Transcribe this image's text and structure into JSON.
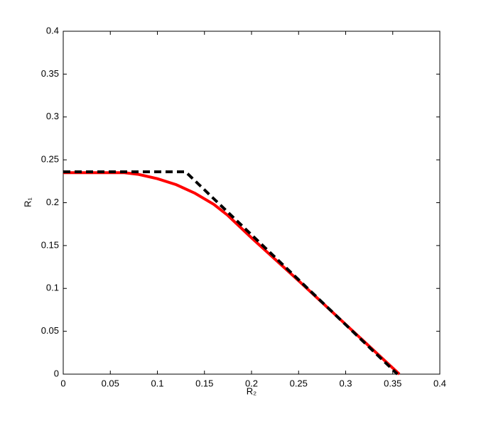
{
  "chart_data": {
    "type": "line",
    "xlabel": "R₂",
    "ylabel": "R₁",
    "xlim": [
      0,
      0.4
    ],
    "ylim": [
      0,
      0.4
    ],
    "xticks": [
      0,
      0.05,
      0.1,
      0.15,
      0.2,
      0.25,
      0.3,
      0.35,
      0.4
    ],
    "yticks": [
      0,
      0.05,
      0.1,
      0.15,
      0.2,
      0.25,
      0.3,
      0.35,
      0.4
    ],
    "grid": false,
    "series": [
      {
        "color": "#ff0000",
        "dash": false,
        "x": [
          0,
          0.03,
          0.065,
          0.08,
          0.1,
          0.12,
          0.14,
          0.16,
          0.175,
          0.2,
          0.25,
          0.3,
          0.357
        ],
        "values": [
          0.235,
          0.235,
          0.235,
          0.233,
          0.228,
          0.221,
          0.211,
          0.198,
          0.185,
          0.159,
          0.109,
          0.058,
          0
        ]
      },
      {
        "color": "#000000",
        "dash": true,
        "x": [
          0,
          0.13,
          0.355
        ],
        "values": [
          0.236,
          0.236,
          0
        ]
      }
    ]
  }
}
